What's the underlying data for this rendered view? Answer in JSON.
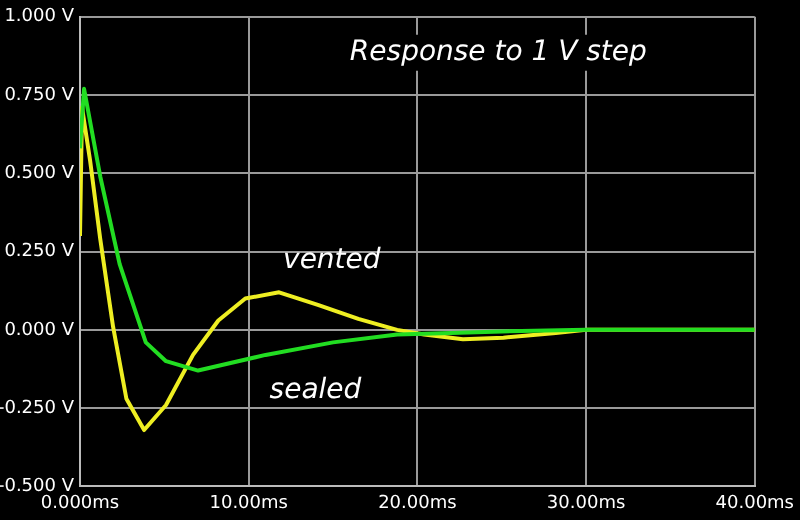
{
  "chart_data": {
    "type": "line",
    "title": "Response to 1 V step",
    "xlim": [
      0,
      40
    ],
    "ylim": [
      -0.5,
      1.0
    ],
    "xticks": [
      {
        "value": 0,
        "label": "0.000ms"
      },
      {
        "value": 10,
        "label": "10.00ms"
      },
      {
        "value": 20,
        "label": "20.00ms"
      },
      {
        "value": 30,
        "label": "30.00ms"
      },
      {
        "value": 40,
        "label": "40.00ms"
      }
    ],
    "yticks": [
      {
        "value": -0.5,
        "label": "-0.500 V"
      },
      {
        "value": -0.25,
        "label": "-0.250 V"
      },
      {
        "value": 0,
        "label": "0.000 V"
      },
      {
        "value": 0.25,
        "label": "0.250 V"
      },
      {
        "value": 0.5,
        "label": "0.500 V"
      },
      {
        "value": 0.75,
        "label": "0.750 V"
      },
      {
        "value": 1.0,
        "label": "1.000 V"
      }
    ],
    "grid": true,
    "legend": false,
    "marker": "none",
    "line_style": "solid",
    "series": [
      {
        "name": "sealed",
        "color": "#22dd22",
        "x": [
          0,
          0.24,
          1.2,
          2.35,
          3.9,
          5.1,
          7,
          11,
          15,
          18.8,
          22,
          25,
          30,
          40
        ],
        "values": [
          0.58,
          0.77,
          0.49,
          0.21,
          -0.04,
          -0.1,
          -0.13,
          -0.08,
          -0.04,
          -0.015,
          -0.01,
          -0.005,
          0,
          0
        ]
      },
      {
        "name": "vented",
        "color": "#eeee22",
        "x": [
          0,
          0.12,
          0.6,
          1.2,
          1.96,
          2.75,
          3.8,
          5.1,
          6.7,
          8.2,
          9.8,
          11.8,
          14.1,
          16.5,
          18.8,
          20.4,
          22.7,
          25.1,
          28.2,
          30,
          40
        ],
        "values": [
          0.3,
          0.71,
          0.54,
          0.29,
          0.01,
          -0.22,
          -0.32,
          -0.24,
          -0.08,
          0.03,
          0.1,
          0.12,
          0.08,
          0.035,
          0,
          -0.015,
          -0.03,
          -0.025,
          -0.01,
          0,
          0
        ]
      }
    ]
  }
}
